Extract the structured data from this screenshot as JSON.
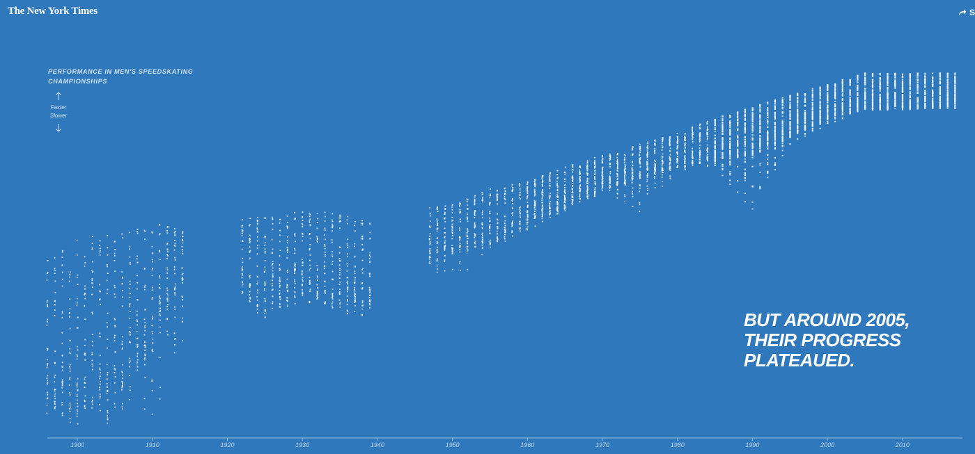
{
  "header": {
    "logo_text": "The New York Times",
    "share_label": "S"
  },
  "chart_data": {
    "type": "scatter",
    "title": "PERFORMANCE IN MEN'S SPEEDSKATING CHAMPIONSHIPS",
    "direction_labels": {
      "up": "Faster",
      "down": "Slower"
    },
    "xlabel": "",
    "ylabel": "",
    "xlim": [
      1896,
      2018
    ],
    "x_ticks": [
      1900,
      1910,
      1920,
      1930,
      1940,
      1950,
      1960,
      1970,
      1980,
      1990,
      2000,
      2010
    ],
    "grid": false,
    "legend": "none",
    "annotation": "BUT AROUND 2005,\nTHEIR PROGRESS\nPLATEAUED.",
    "performance_scale": "relative index (0 = slowest, 100 = fastest)",
    "gap_years": [
      1915,
      1916,
      1917,
      1918,
      1919,
      1920,
      1921,
      1940,
      1941,
      1942,
      1943,
      1944,
      1945,
      1946
    ],
    "yearly_summary": [
      {
        "year": 1896,
        "fastest": 47,
        "median": 25,
        "slowest": 9
      },
      {
        "year": 1900,
        "fastest": 53,
        "median": 28,
        "slowest": 1
      },
      {
        "year": 1905,
        "fastest": 54,
        "median": 27,
        "slowest": 11
      },
      {
        "year": 1910,
        "fastest": 57,
        "median": 40,
        "slowest": 1
      },
      {
        "year": 1914,
        "fastest": 55,
        "median": 45,
        "slowest": 24
      },
      {
        "year": 1922,
        "fastest": 58,
        "median": 47,
        "slowest": 38
      },
      {
        "year": 1925,
        "fastest": 59,
        "median": 45,
        "slowest": 30
      },
      {
        "year": 1930,
        "fastest": 60,
        "median": 47,
        "slowest": 40
      },
      {
        "year": 1934,
        "fastest": 60,
        "median": 47,
        "slowest": 33
      },
      {
        "year": 1939,
        "fastest": 57,
        "median": 45,
        "slowest": 32
      },
      {
        "year": 1947,
        "fastest": 61,
        "median": 53,
        "slowest": 45
      },
      {
        "year": 1950,
        "fastest": 62,
        "median": 55,
        "slowest": 40
      },
      {
        "year": 1955,
        "fastest": 66,
        "median": 58,
        "slowest": 50
      },
      {
        "year": 1960,
        "fastest": 68,
        "median": 62,
        "slowest": 55
      },
      {
        "year": 1965,
        "fastest": 72,
        "median": 66,
        "slowest": 60
      },
      {
        "year": 1970,
        "fastest": 75,
        "median": 70,
        "slowest": 65
      },
      {
        "year": 1975,
        "fastest": 78,
        "median": 73,
        "slowest": 60
      },
      {
        "year": 1980,
        "fastest": 81,
        "median": 76,
        "slowest": 71
      },
      {
        "year": 1985,
        "fastest": 85,
        "median": 79,
        "slowest": 72
      },
      {
        "year": 1990,
        "fastest": 88,
        "median": 81,
        "slowest": 60
      },
      {
        "year": 1995,
        "fastest": 91,
        "median": 85,
        "slowest": 78
      },
      {
        "year": 2000,
        "fastest": 94,
        "median": 89,
        "slowest": 83
      },
      {
        "year": 2005,
        "fastest": 97,
        "median": 92,
        "slowest": 87
      },
      {
        "year": 2010,
        "fastest": 97,
        "median": 92,
        "slowest": 87
      },
      {
        "year": 2017,
        "fastest": 97,
        "median": 92,
        "slowest": 88
      }
    ]
  },
  "colors": {
    "background": "#2f78bb",
    "dots": "#e6f1fb",
    "axis": "#8fbbe3"
  }
}
